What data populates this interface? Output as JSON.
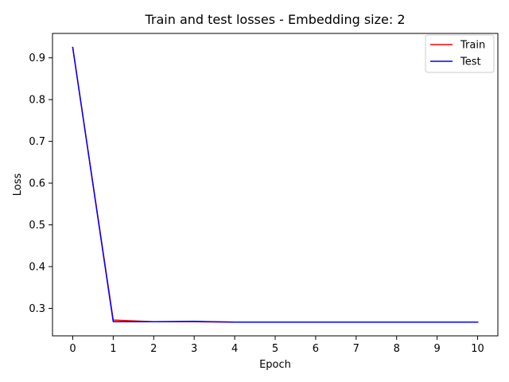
{
  "chart_data": {
    "type": "line",
    "title": "Train and test losses - Embedding size: 2",
    "xlabel": "Epoch",
    "ylabel": "Loss",
    "x": [
      0,
      1,
      2,
      3,
      4,
      5,
      6,
      7,
      8,
      9,
      10
    ],
    "xticks": [
      "0",
      "1",
      "2",
      "3",
      "4",
      "5",
      "6",
      "7",
      "8",
      "9",
      "10"
    ],
    "yticks": [
      "0.3",
      "0.4",
      "0.5",
      "0.6",
      "0.7",
      "0.8",
      "0.9"
    ],
    "xlim": [
      -0.5,
      10.5
    ],
    "ylim": [
      0.2342,
      0.9585
    ],
    "grid": false,
    "legend_position": "top-right",
    "series": [
      {
        "name": "Train",
        "color": "#ff0000",
        "values": [
          0.925,
          0.272,
          0.268,
          0.268,
          0.267,
          0.267,
          0.267,
          0.267,
          0.267,
          0.267,
          0.267
        ]
      },
      {
        "name": "Test",
        "color": "#0000ff",
        "values": [
          0.925,
          0.268,
          0.268,
          0.269,
          0.267,
          0.267,
          0.267,
          0.267,
          0.267,
          0.267,
          0.267
        ]
      }
    ]
  }
}
